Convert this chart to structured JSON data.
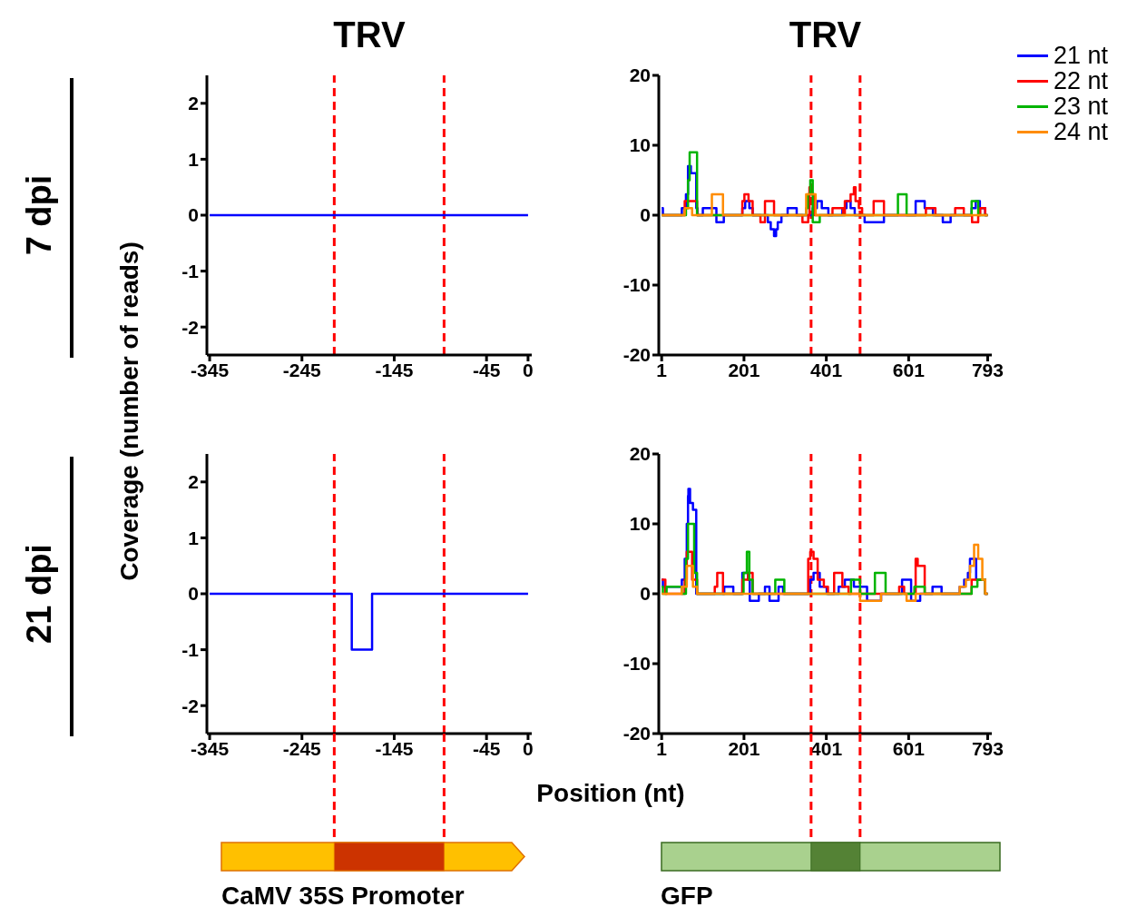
{
  "chart_data": [
    {
      "type": "step",
      "title": "TRV",
      "ylabel": "Coverage (number of reads)",
      "annotations": [
        "7 dpi"
      ],
      "xlim": [
        -348,
        4
      ],
      "xticks": [
        -345,
        -245,
        -145,
        -45,
        0
      ],
      "ylim": [
        -2.5,
        2.5
      ],
      "yticks": [
        -2,
        -1,
        0,
        1,
        2
      ],
      "ref_lines": [
        {
          "axis": "x",
          "value": -210,
          "color": "#ff0000",
          "line_style": "dashed"
        },
        {
          "axis": "x",
          "value": -91,
          "color": "#ff0000",
          "line_style": "dashed"
        }
      ],
      "series": [
        {
          "color": "#0000ff",
          "x": [
            -345,
            0
          ],
          "values": [
            0,
            0
          ]
        }
      ]
    },
    {
      "type": "step",
      "title": "TRV",
      "legend": "top right",
      "xlim": [
        -6,
        803
      ],
      "xticks": [
        1,
        201,
        401,
        601,
        793
      ],
      "ylim": [
        -20,
        20
      ],
      "yticks": [
        -20,
        -10,
        0,
        10,
        20
      ],
      "ref_lines": [
        {
          "axis": "x",
          "value": 364,
          "color": "#ff0000",
          "line_style": "dashed"
        },
        {
          "axis": "x",
          "value": 483,
          "color": "#ff0000",
          "line_style": "dashed"
        }
      ],
      "series": [
        {
          "name": "21 nt",
          "color": "#0000ff",
          "x": [
            1,
            4,
            50,
            60,
            65,
            72,
            85,
            88,
            101,
            134,
            152,
            197,
            204,
            214,
            222,
            259,
            266,
            274,
            279,
            283,
            292,
            307,
            329,
            368,
            378,
            390,
            406,
            440,
            450,
            460,
            470,
            494,
            541,
            618,
            640,
            660,
            684,
            703,
            754,
            764,
            774,
            787,
            793
          ],
          "values": [
            1,
            0,
            1,
            3,
            7,
            6,
            1,
            0,
            1,
            -1,
            0,
            1,
            2,
            1,
            0,
            -1,
            -2,
            -3,
            -2,
            -1,
            0,
            1,
            0,
            1,
            2,
            1,
            0,
            1,
            2,
            1,
            0,
            -1,
            0,
            2,
            1,
            0,
            -1,
            0,
            1,
            2,
            1,
            0,
            0
          ]
        },
        {
          "name": "22 nt",
          "color": "#ff0000",
          "x": [
            1,
            57,
            87,
            197,
            202,
            212,
            222,
            241,
            252,
            274,
            343,
            357,
            360,
            365,
            372,
            416,
            442,
            446,
            460,
            468,
            472,
            480,
            488,
            516,
            541,
            643,
            666,
            714,
            735,
            755,
            770,
            775,
            787,
            793
          ],
          "values": [
            0,
            2,
            0,
            2,
            3,
            2,
            0,
            -1,
            2,
            0,
            -1,
            0,
            4,
            3,
            0,
            1,
            0,
            2,
            3,
            4,
            2,
            1,
            0,
            2,
            0,
            1,
            0,
            1,
            0,
            -1,
            0,
            1,
            0,
            0
          ]
        },
        {
          "name": "23 nt",
          "color": "#00b400",
          "x": [
            1,
            60,
            65,
            69,
            82,
            87,
            352,
            356,
            362,
            368,
            385,
            575,
            596,
            754,
            770,
            793
          ],
          "values": [
            0,
            1,
            5,
            9,
            9,
            0,
            1,
            3,
            5,
            -1,
            0,
            3,
            0,
            2,
            0,
            0
          ]
        },
        {
          "name": "24 nt",
          "color": "#ff8c00",
          "x": [
            1,
            57,
            75,
            123,
            150,
            352,
            375,
            793
          ],
          "values": [
            0,
            1,
            0,
            3,
            0,
            3,
            0,
            0
          ]
        }
      ]
    },
    {
      "type": "step",
      "annotations": [
        "21 dpi",
        "CaMV 35S Promoter"
      ],
      "xlim": [
        -348,
        4
      ],
      "xticks": [
        -345,
        -245,
        -145,
        -45,
        0
      ],
      "ylim": [
        -2.5,
        2.5
      ],
      "yticks": [
        -2,
        -1,
        0,
        1,
        2
      ],
      "ref_lines": [
        {
          "axis": "x",
          "value": -210,
          "color": "#ff0000",
          "line_style": "dashed"
        },
        {
          "axis": "x",
          "value": -91,
          "color": "#ff0000",
          "line_style": "dashed"
        }
      ],
      "series": [
        {
          "color": "#0000ff",
          "x": [
            -345,
            -191,
            -169,
            0
          ],
          "values": [
            0,
            -1,
            0,
            0
          ]
        }
      ]
    },
    {
      "type": "step",
      "xlabel": "Position (nt)",
      "annotations": [
        "GFP"
      ],
      "xlim": [
        -6,
        803
      ],
      "xticks": [
        1,
        201,
        401,
        601,
        793
      ],
      "ylim": [
        -20,
        20
      ],
      "yticks": [
        -20,
        -10,
        0,
        10,
        20
      ],
      "ref_lines": [
        {
          "axis": "x",
          "value": 364,
          "color": "#ff0000",
          "line_style": "dashed"
        },
        {
          "axis": "x",
          "value": 483,
          "color": "#ff0000",
          "line_style": "dashed"
        }
      ],
      "series": [
        {
          "color": "#0000ff",
          "x": [
            1,
            4,
            6,
            50,
            57,
            62,
            65,
            66,
            70,
            77,
            85,
            153,
            175,
            197,
            211,
            215,
            237,
            252,
            263,
            285,
            296,
            362,
            370,
            385,
            402,
            431,
            446,
            468,
            479,
            500,
            534,
            585,
            607,
            629,
            659,
            681,
            725,
            736,
            745,
            750,
            765,
            787,
            793
          ],
          "values": [
            2,
            1,
            1,
            2,
            5,
            10,
            14,
            15,
            13,
            12,
            0,
            1,
            0,
            3,
            2,
            -1,
            0,
            1,
            -1,
            1,
            0,
            2,
            3,
            1,
            0,
            1,
            2,
            1,
            1,
            -1,
            0,
            2,
            -1,
            0,
            1,
            0,
            1,
            2,
            3,
            5,
            2,
            0,
            0
          ]
        },
        {
          "color": "#ff0000",
          "x": [
            1,
            10,
            57,
            62,
            75,
            87,
            130,
            136,
            150,
            197,
            211,
            222,
            357,
            362,
            370,
            380,
            395,
            405,
            420,
            440,
            455,
            578,
            590,
            618,
            623,
            640,
            754,
            787,
            793
          ],
          "values": [
            2,
            0,
            2,
            6,
            2,
            0,
            1,
            3,
            0,
            2,
            3,
            0,
            5,
            6,
            5,
            2,
            1,
            0,
            3,
            1,
            0,
            1,
            0,
            5,
            4,
            0,
            2,
            0,
            0
          ]
        },
        {
          "color": "#00b400",
          "x": [
            1,
            4,
            13,
            50,
            60,
            65,
            76,
            80,
            87,
            200,
            208,
            214,
            222,
            277,
            299,
            461,
            483,
            519,
            545,
            615,
            640,
            754,
            768,
            787,
            793
          ],
          "values": [
            1,
            0,
            1,
            0,
            5,
            10,
            10,
            3,
            0,
            3,
            6,
            2,
            0,
            2,
            0,
            2,
            0,
            3,
            0,
            1,
            0,
            1,
            2,
            0,
            0
          ]
        },
        {
          "color": "#ff8c00",
          "x": [
            1,
            50,
            62,
            77,
            87,
            483,
            534,
            596,
            618,
            725,
            740,
            750,
            760,
            770,
            780,
            787,
            793
          ],
          "values": [
            0,
            1,
            4,
            1,
            0,
            -1,
            0,
            -1,
            0,
            1,
            2,
            4,
            7,
            5,
            2,
            0,
            0
          ]
        }
      ]
    }
  ]
}
